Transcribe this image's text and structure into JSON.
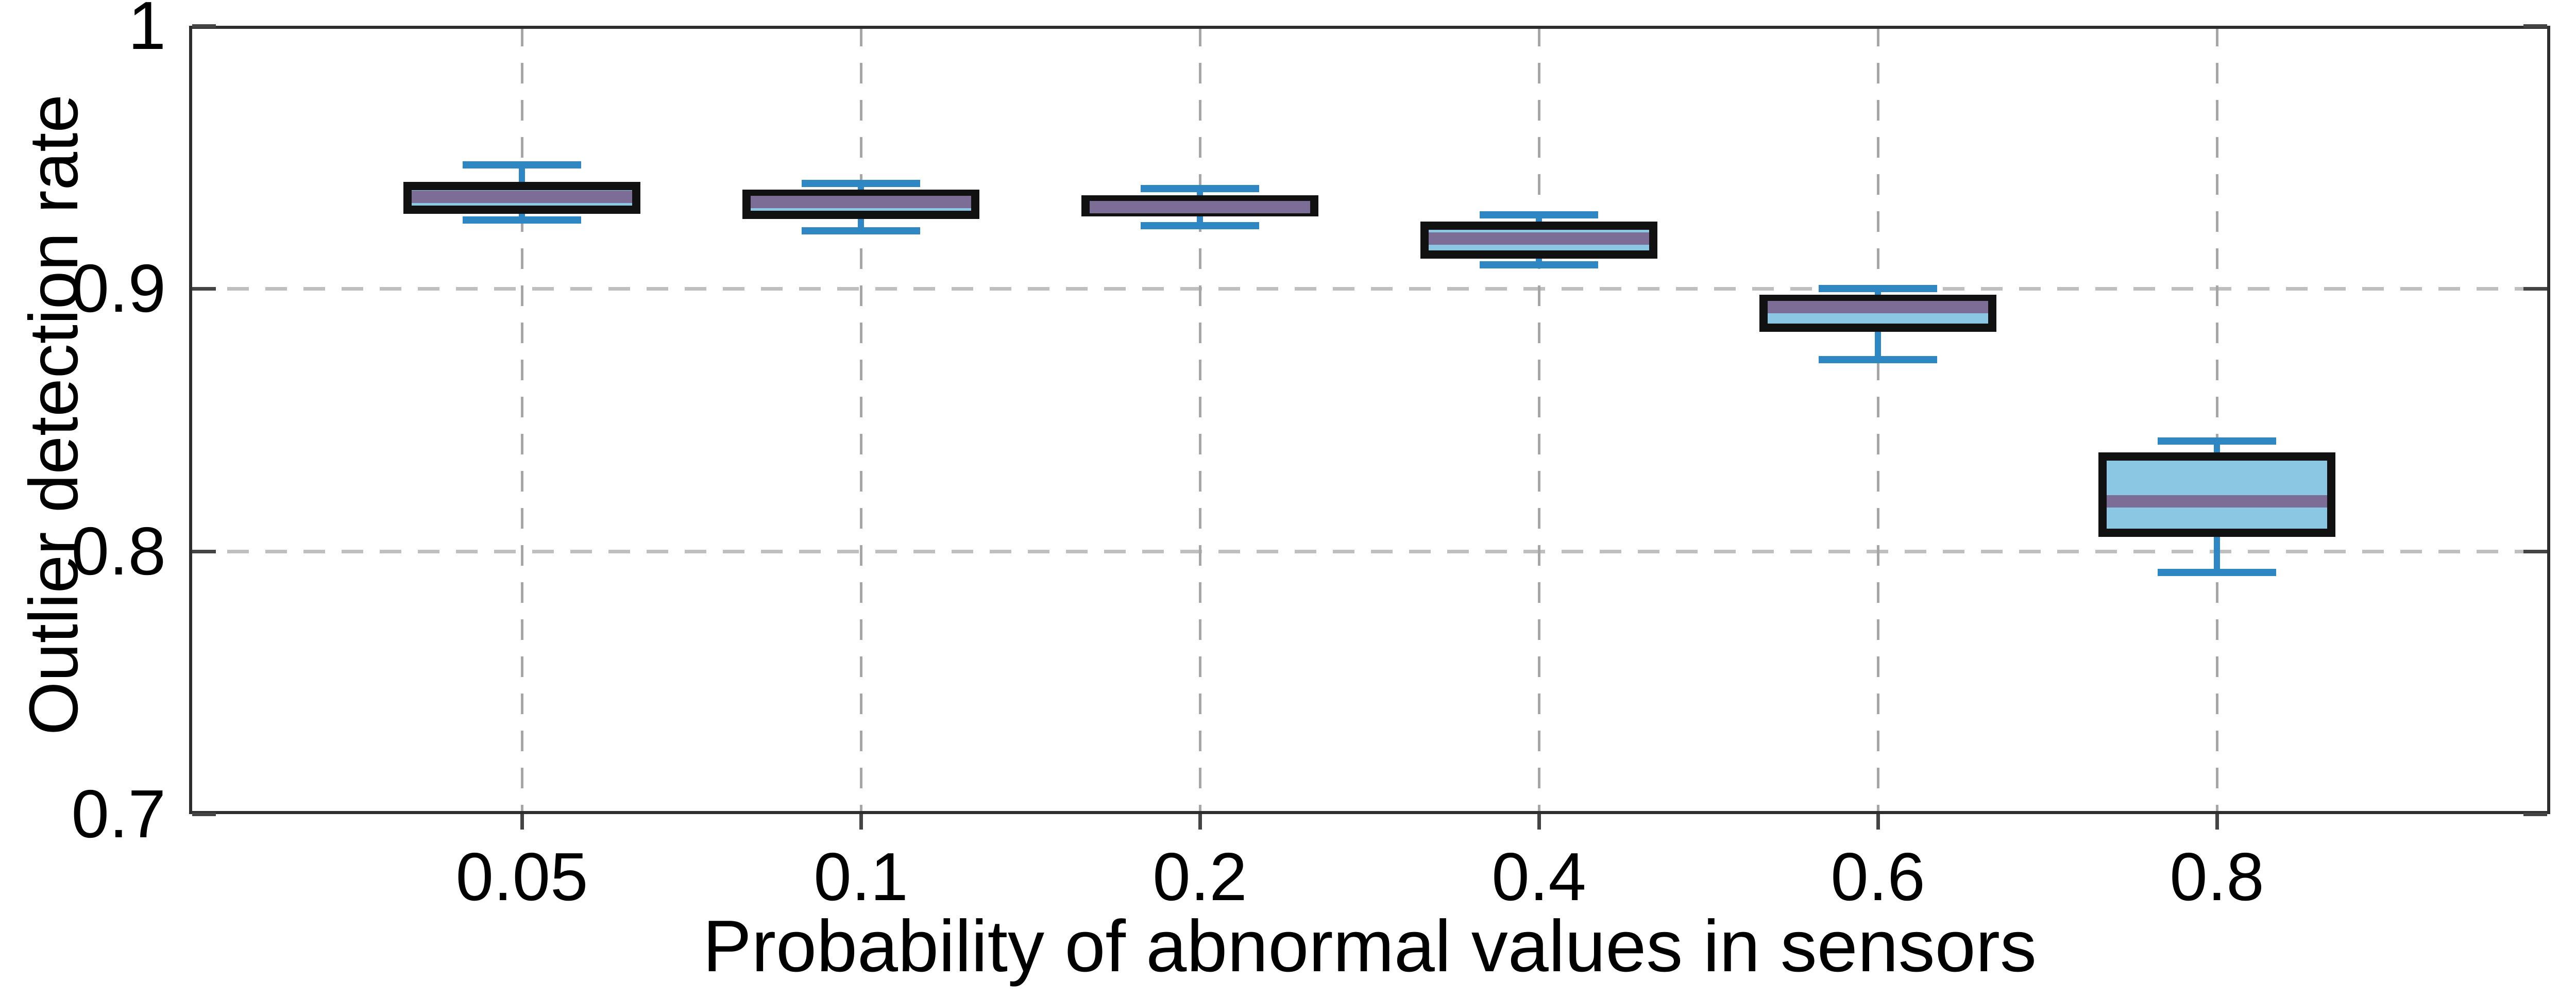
{
  "figure": {
    "background": "#ffffff"
  },
  "chart_data": {
    "type": "boxplot",
    "title": "",
    "xlabel": "Probability of abnormal values in sensors",
    "ylabel": "Outlier detection rate",
    "categories": [
      "0.05",
      "0.1",
      "0.2",
      "0.4",
      "0.6",
      "0.8"
    ],
    "series": [
      {
        "category": "0.05",
        "whisker_low": 0.926,
        "q1": 0.93,
        "median": 0.935,
        "q3": 0.939,
        "whisker_high": 0.947
      },
      {
        "category": "0.1",
        "whisker_low": 0.922,
        "q1": 0.928,
        "median": 0.933,
        "q3": 0.936,
        "whisker_high": 0.94
      },
      {
        "category": "0.2",
        "whisker_low": 0.924,
        "q1": 0.929,
        "median": 0.931,
        "q3": 0.934,
        "whisker_high": 0.938
      },
      {
        "category": "0.4",
        "whisker_low": 0.909,
        "q1": 0.913,
        "median": 0.919,
        "q3": 0.924,
        "whisker_high": 0.928
      },
      {
        "category": "0.6",
        "whisker_low": 0.873,
        "q1": 0.885,
        "median": 0.893,
        "q3": 0.896,
        "whisker_high": 0.9
      },
      {
        "category": "0.8",
        "whisker_low": 0.792,
        "q1": 0.807,
        "median": 0.819,
        "q3": 0.836,
        "whisker_high": 0.842
      }
    ],
    "ylim": [
      0.7,
      1.0
    ],
    "yticks": [
      {
        "value": 1.0,
        "label": "1"
      },
      {
        "value": 0.9,
        "label": "0.9"
      },
      {
        "value": 0.8,
        "label": "0.8"
      },
      {
        "value": 0.7,
        "label": "0.7"
      }
    ],
    "grid": {
      "horizontal_at": [
        0.9,
        0.8
      ],
      "vertical_at_each_category": true,
      "style": "dashed",
      "legend": "none"
    },
    "colors": {
      "box_fill": "#8bc7e2",
      "box_edge": "#111111",
      "median_line": "#7c6d96",
      "whisker": "#2e86c3",
      "grid_horizontal": "#bfbfbf",
      "grid_vertical": "#a6a6a6",
      "axis": "#2e2e2e",
      "text": "#000000"
    }
  }
}
